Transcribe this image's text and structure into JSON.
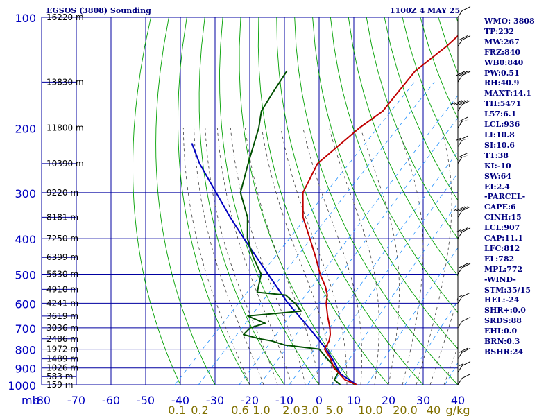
{
  "header": {
    "title": "EGSOS (3808) Sounding",
    "datetime": "1100Z  4 MAY 25"
  },
  "indices": [
    "WMO: 3808",
    "TP:232",
    "MW:267",
    "FRZ:840",
    "WB0:840",
    "PW:0.51",
    "RH:40.9",
    "MAXT:14.1",
    "TH:5471",
    "L57:6.1",
    "LCL:936",
    "LI:10.8",
    "SI:10.6",
    "TT:38",
    "KI:-10",
    "SW:64",
    "EI:2.4",
    "-PARCEL-",
    "CAPE:6",
    "CINH:15",
    "LCL:907",
    "CAP:11.1",
    "LFC:812",
    "EL:782",
    "MPL:772",
    "-WIND-",
    "STM:35/15",
    "HEL:-24",
    "SHR+:0.0",
    "SRDS:88",
    "EHI:0.0",
    "BRN:0.3",
    "BSHR:24"
  ],
  "colors": {
    "grid": "#0000a0",
    "dry_adiabat": "#00a000",
    "moist_adiabat": "#404040",
    "mixing_ratio": "#2090ff",
    "temperature": "#c00000",
    "dewpoint": "#005000",
    "parcel": "#0000c0",
    "pressure_label": "#0000c0",
    "height_label": "#000000",
    "mixing_label": "#807000",
    "wind": "#000000"
  },
  "chart_data": {
    "type": "line",
    "diagram": "skew-T log-P",
    "pressure_levels": [
      100,
      200,
      300,
      400,
      500,
      600,
      700,
      800,
      900,
      1000
    ],
    "pressure_axis_unit": "mb",
    "temperature_ticks": [
      -80,
      -70,
      -60,
      -50,
      -40,
      -30,
      -20,
      -10,
      0,
      10,
      20,
      30,
      40
    ],
    "mixing_ratio_labels": [
      "0.1",
      "0.2",
      "0.6",
      "1.0",
      "2.0",
      "3.0",
      "5.0",
      "10.0",
      "20.0",
      "40",
      "g/kg"
    ],
    "mixing_ratio_values": [
      0.1,
      0.2,
      0.6,
      1.0,
      2.0,
      3.0,
      5.0,
      10.0,
      20.0,
      40.0
    ],
    "heights": [
      {
        "p": 100,
        "label": "16220 m"
      },
      {
        "p": 150,
        "label": "13830 m"
      },
      {
        "p": 200,
        "label": "11800 m"
      },
      {
        "p": 250,
        "label": "10390 m"
      },
      {
        "p": 300,
        "label": "9220 m"
      },
      {
        "p": 350,
        "label": "8181 m"
      },
      {
        "p": 400,
        "label": "7250 m"
      },
      {
        "p": 450,
        "label": "6399 m"
      },
      {
        "p": 500,
        "label": "5630 m"
      },
      {
        "p": 550,
        "label": "4910 m"
      },
      {
        "p": 600,
        "label": "4241 m"
      },
      {
        "p": 650,
        "label": "3619 m"
      },
      {
        "p": 700,
        "label": "3036 m"
      },
      {
        "p": 750,
        "label": "2486 m"
      },
      {
        "p": 800,
        "label": "1972 m"
      },
      {
        "p": 850,
        "label": "1489 m"
      },
      {
        "p": 900,
        "label": "1026 m"
      },
      {
        "p": 950,
        "label": "583 m"
      },
      {
        "p": 1000,
        "label": "159 m"
      }
    ],
    "temperature": [
      [
        1000,
        10.8
      ],
      [
        970,
        6.1
      ],
      [
        925,
        2.0
      ],
      [
        900,
        -0.5
      ],
      [
        850,
        -4.0
      ],
      [
        800,
        -8.5
      ],
      [
        780,
        -9.0
      ],
      [
        760,
        -9.5
      ],
      [
        730,
        -11.0
      ],
      [
        700,
        -13.0
      ],
      [
        650,
        -17.0
      ],
      [
        600,
        -21.0
      ],
      [
        570,
        -23.0
      ],
      [
        540,
        -26.0
      ],
      [
        500,
        -31.0
      ],
      [
        450,
        -37.0
      ],
      [
        400,
        -44.0
      ],
      [
        350,
        -52.0
      ],
      [
        300,
        -59.0
      ],
      [
        250,
        -63.0
      ],
      [
        200,
        -61.0
      ],
      [
        180,
        -59.0
      ],
      [
        160,
        -60.0
      ],
      [
        140,
        -61.0
      ],
      [
        120,
        -59.0
      ],
      [
        100,
        -58.0
      ]
    ],
    "dewpoint": [
      [
        1000,
        6.1
      ],
      [
        970,
        3.0
      ],
      [
        925,
        2.0
      ],
      [
        900,
        0.0
      ],
      [
        850,
        -5.0
      ],
      [
        800,
        -10.0
      ],
      [
        780,
        -21.0
      ],
      [
        760,
        -26.0
      ],
      [
        750,
        -30.0
      ],
      [
        730,
        -36.0
      ],
      [
        700,
        -36.0
      ],
      [
        680,
        -33.0
      ],
      [
        650,
        -40.0
      ],
      [
        630,
        -26.0
      ],
      [
        600,
        -30.0
      ],
      [
        570,
        -35.0
      ],
      [
        560,
        -44.0
      ],
      [
        500,
        -48.0
      ],
      [
        450,
        -55.0
      ],
      [
        400,
        -62.0
      ],
      [
        350,
        -68.0
      ],
      [
        300,
        -77.0
      ],
      [
        250,
        -83.0
      ],
      [
        200,
        -90.0
      ],
      [
        180,
        -94.0
      ],
      [
        160,
        -96.0
      ],
      [
        140,
        -98.0
      ]
    ],
    "parcel": [
      [
        1000,
        10.8
      ],
      [
        936,
        3.3
      ],
      [
        907,
        1.0
      ],
      [
        850,
        -3.5
      ],
      [
        800,
        -8.0
      ],
      [
        700,
        -19.0
      ],
      [
        600,
        -32.0
      ],
      [
        500,
        -46.0
      ],
      [
        400,
        -63.0
      ],
      [
        350,
        -73.0
      ],
      [
        300,
        -84.0
      ],
      [
        250,
        -97.0
      ],
      [
        220,
        -105.0
      ]
    ],
    "wind_barbs": [
      {
        "p": 1000,
        "dir": 250,
        "spd": 10
      },
      {
        "p": 925,
        "dir": 260,
        "spd": 15
      },
      {
        "p": 850,
        "dir": 270,
        "spd": 20
      },
      {
        "p": 700,
        "dir": 280,
        "spd": 10
      },
      {
        "p": 600,
        "dir": 290,
        "spd": 15
      },
      {
        "p": 500,
        "dir": 280,
        "spd": 20
      },
      {
        "p": 400,
        "dir": 275,
        "spd": 25
      },
      {
        "p": 350,
        "dir": 270,
        "spd": 35
      },
      {
        "p": 250,
        "dir": 275,
        "spd": 60
      },
      {
        "p": 225,
        "dir": 275,
        "spd": 65
      },
      {
        "p": 200,
        "dir": 275,
        "spd": 60
      },
      {
        "p": 180,
        "dir": 280,
        "spd": 45
      },
      {
        "p": 150,
        "dir": 285,
        "spd": 30
      },
      {
        "p": 120,
        "dir": 280,
        "spd": 20
      },
      {
        "p": 100,
        "dir": 290,
        "spd": 10
      }
    ]
  }
}
